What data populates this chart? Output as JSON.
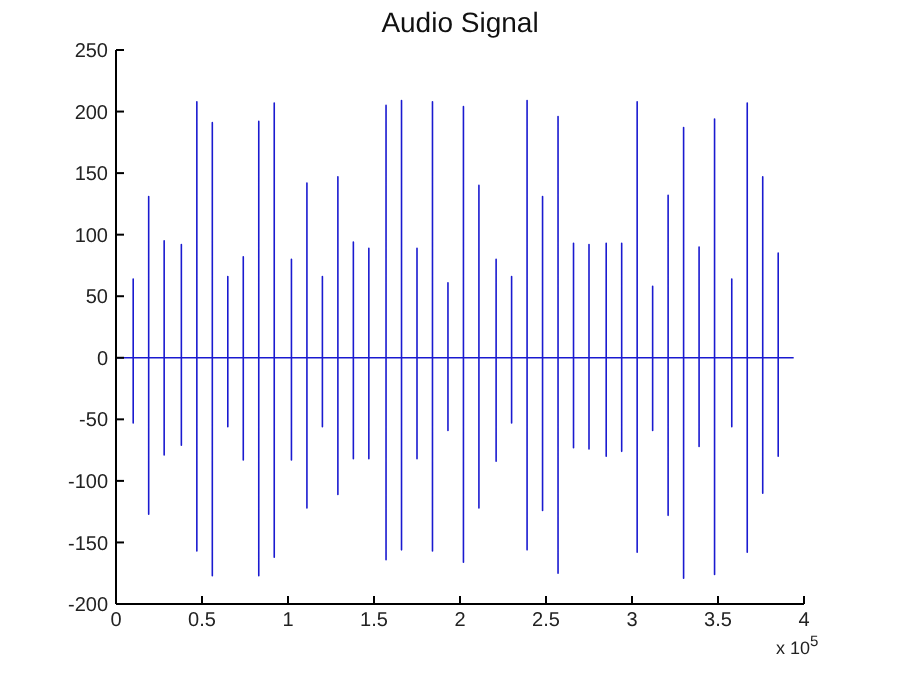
{
  "chart_data": {
    "type": "line",
    "title": "Audio Signal",
    "annotations": [
      "x 10$^{5}$"
    ],
    "x": [
      0,
      0.1,
      0.1,
      0.1,
      0.1,
      0.19,
      0.19,
      0.19,
      0.19,
      0.28,
      0.28,
      0.28,
      0.28,
      0.38,
      0.38,
      0.38,
      0.38,
      0.47,
      0.47,
      0.47,
      0.47,
      0.56,
      0.56,
      0.56,
      0.56,
      0.65,
      0.65,
      0.65,
      0.65,
      0.74,
      0.74,
      0.74,
      0.74,
      0.83,
      0.83,
      0.83,
      0.83,
      0.92,
      0.92,
      0.92,
      0.92,
      1.02,
      1.02,
      1.02,
      1.02,
      1.11,
      1.11,
      1.11,
      1.11,
      1.2,
      1.2,
      1.2,
      1.2,
      1.29,
      1.29,
      1.29,
      1.29,
      1.38,
      1.38,
      1.38,
      1.38,
      1.47,
      1.47,
      1.47,
      1.47,
      1.57,
      1.57,
      1.57,
      1.57,
      1.66,
      1.66,
      1.66,
      1.66,
      1.75,
      1.75,
      1.75,
      1.75,
      1.84,
      1.84,
      1.84,
      1.84,
      1.93,
      1.93,
      1.93,
      1.93,
      2.02,
      2.02,
      2.02,
      2.02,
      2.11,
      2.11,
      2.11,
      2.11,
      2.21,
      2.21,
      2.21,
      2.21,
      2.3,
      2.3,
      2.3,
      2.3,
      2.39,
      2.39,
      2.39,
      2.39,
      2.48,
      2.48,
      2.48,
      2.48,
      2.57,
      2.57,
      2.57,
      2.57,
      2.66,
      2.66,
      2.66,
      2.66,
      2.75,
      2.75,
      2.75,
      2.75,
      2.85,
      2.85,
      2.85,
      2.85,
      2.94,
      2.94,
      2.94,
      2.94,
      3.03,
      3.03,
      3.03,
      3.03,
      3.12,
      3.12,
      3.12,
      3.12,
      3.21,
      3.21,
      3.21,
      3.21,
      3.3,
      3.3,
      3.3,
      3.3,
      3.39,
      3.39,
      3.39,
      3.39,
      3.48,
      3.48,
      3.48,
      3.48,
      3.58,
      3.58,
      3.58,
      3.58,
      3.67,
      3.67,
      3.67,
      3.67,
      3.76,
      3.76,
      3.76,
      3.76,
      3.85,
      3.85,
      3.85,
      3.85,
      3.94
    ],
    "series": [
      {
        "color": "#1a1ad0",
        "values": [
          0,
          0,
          64,
          -53,
          0,
          0,
          131,
          -127,
          0,
          0,
          95,
          -79,
          0,
          0,
          92,
          -71,
          0,
          0,
          208,
          -157,
          0,
          0,
          191,
          -177,
          0,
          0,
          66,
          -56,
          0,
          0,
          82,
          -83,
          0,
          0,
          192,
          -177,
          0,
          0,
          207,
          -162,
          0,
          0,
          80,
          -83,
          0,
          0,
          142,
          -122,
          0,
          0,
          66,
          -56,
          0,
          0,
          147,
          -111,
          0,
          0,
          94,
          -82,
          0,
          0,
          89,
          -82,
          0,
          0,
          205,
          -164,
          0,
          0,
          209,
          -156,
          0,
          0,
          89,
          -82,
          0,
          0,
          208,
          -157,
          0,
          0,
          61,
          -59,
          0,
          0,
          204,
          -166,
          0,
          0,
          140,
          -122,
          0,
          0,
          80,
          -84,
          0,
          0,
          66,
          -53,
          0,
          0,
          209,
          -156,
          0,
          0,
          131,
          -124,
          0,
          0,
          196,
          -175,
          0,
          0,
          93,
          -73,
          0,
          0,
          92,
          -74,
          0,
          0,
          93,
          -80,
          0,
          0,
          93,
          -76,
          0,
          0,
          208,
          -158,
          0,
          0,
          58,
          -59,
          0,
          0,
          132,
          -128,
          0,
          0,
          187,
          -179,
          0,
          0,
          90,
          -72,
          0,
          0,
          194,
          -176,
          0,
          0,
          64,
          -56,
          0,
          0,
          207,
          -158,
          0,
          0,
          147,
          -110,
          0,
          0,
          85,
          -80,
          0,
          0
        ]
      }
    ],
    "xlim": [
      0,
      4
    ],
    "xticks": [
      0,
      0.5,
      1,
      1.5,
      2,
      2.5,
      3,
      3.5,
      4
    ],
    "ylim": [
      -200,
      250
    ],
    "yticks": [
      -200,
      -150,
      -100,
      -50,
      0,
      50,
      100,
      150,
      200,
      250
    ],
    "grid": false,
    "legend": false,
    "marker": "none",
    "line_style": "solid"
  }
}
